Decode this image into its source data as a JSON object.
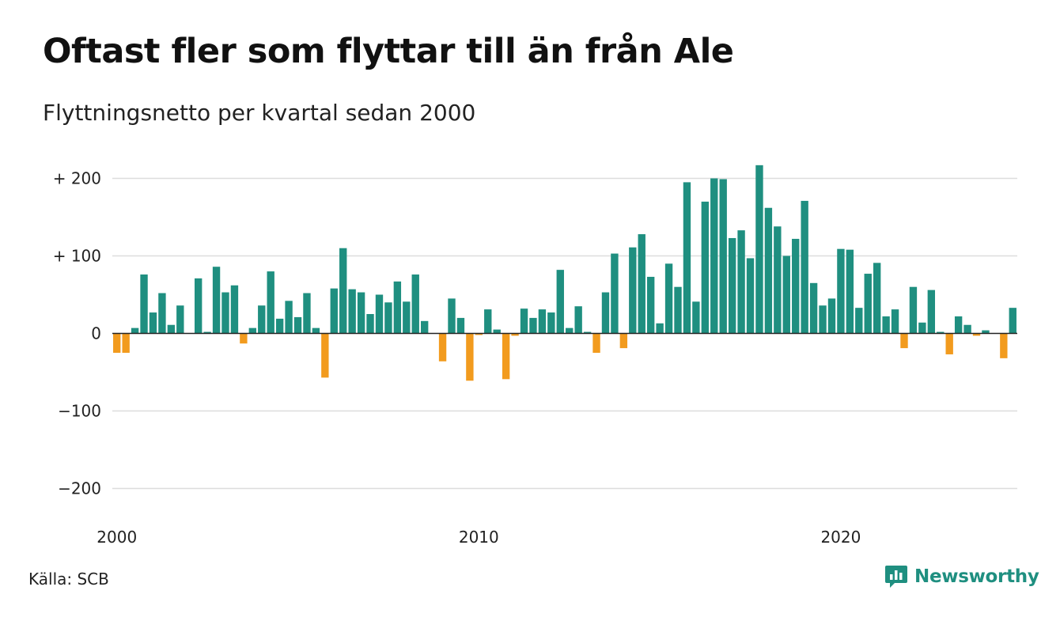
{
  "title": "Oftast fler som flyttar till än från Ale",
  "subtitle": "Flyttningsnetto per kvartal sedan 2000",
  "source": "Källa: SCB",
  "brand": "Newsworthy",
  "colors": {
    "positive": "#1f8f80",
    "negative": "#f29b1e",
    "brand": "#1f8f80"
  },
  "chart_data": {
    "type": "bar",
    "title": "Oftast fler som flyttar till än från Ale",
    "subtitle": "Flyttningsnetto per kvartal sedan 2000",
    "xlabel": "",
    "ylabel": "",
    "ylim": [
      -200,
      220
    ],
    "yticks": [
      200,
      100,
      0,
      -100,
      -200
    ],
    "ytick_labels": [
      "+ 200",
      "+ 100",
      "0",
      "−100",
      "−200"
    ],
    "xtick_labels": [
      "2000",
      "2010",
      "2020"
    ],
    "grid": true,
    "values": [
      -25,
      -25,
      7,
      76,
      27,
      52,
      11,
      36,
      0,
      71,
      2,
      86,
      53,
      62,
      -13,
      7,
      36,
      80,
      19,
      42,
      21,
      52,
      7,
      -57,
      58,
      110,
      57,
      53,
      25,
      50,
      40,
      67,
      41,
      76,
      16,
      0,
      -36,
      45,
      20,
      -61,
      -2,
      31,
      5,
      -59,
      -3,
      32,
      20,
      31,
      27,
      82,
      7,
      35,
      2,
      -25,
      53,
      103,
      -19,
      111,
      128,
      73,
      13,
      90,
      60,
      195,
      41,
      170,
      200,
      199,
      123,
      133,
      97,
      217,
      162,
      138,
      100,
      122,
      171,
      65,
      36,
      45,
      109,
      108,
      33,
      77,
      91,
      22,
      31,
      -19,
      60,
      14,
      56,
      2,
      -27,
      22,
      11,
      -3,
      4,
      0,
      -32,
      33
    ]
  }
}
